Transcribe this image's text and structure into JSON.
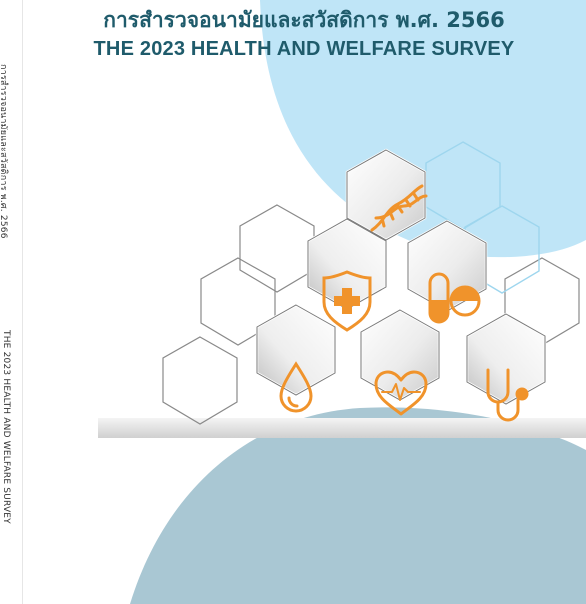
{
  "cover": {
    "title_th": "การสำรวจอนามัยและสวัสดิการ พ.ศ. 2566",
    "title_en": "THE 2023 HEALTH AND WELFARE SURVEY",
    "spine_th": "การสำรวจอนามัยและสวัสดิการ พ.ศ. 2566",
    "spine_en": "THE 2023 HEALTH AND WELFARE SURVEY"
  },
  "colors": {
    "title": "#1f5b6b",
    "light_blue": "#bfe5f7",
    "slate_blue": "#a9c7d3",
    "icon_orange": "#f0932b"
  },
  "icons": [
    "dna-icon",
    "shield-cross-icon",
    "capsule-pill-icon",
    "drop-icon",
    "heart-pulse-icon",
    "stethoscope-icon"
  ]
}
